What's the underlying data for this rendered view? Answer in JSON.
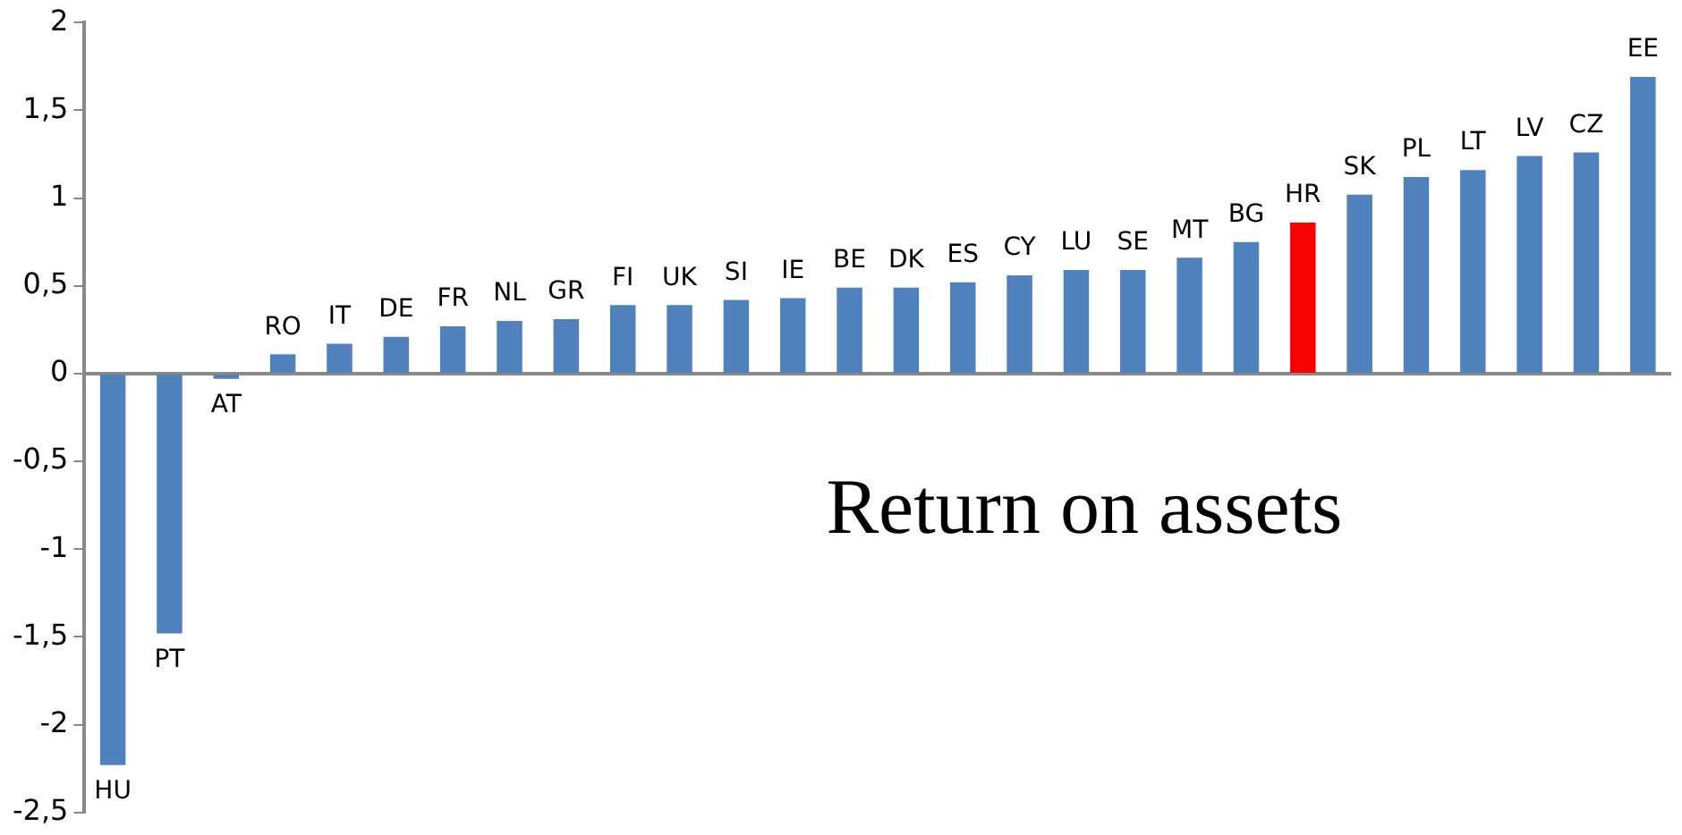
{
  "chart_data": {
    "type": "bar",
    "title": "Return on assets",
    "categories": [
      "HU",
      "PT",
      "AT",
      "RO",
      "IT",
      "DE",
      "FR",
      "NL",
      "GR",
      "FI",
      "UK",
      "SI",
      "IE",
      "BE",
      "DK",
      "ES",
      "CY",
      "LU",
      "SE",
      "MT",
      "BG",
      "HR",
      "SK",
      "PL",
      "LT",
      "LV",
      "CZ",
      "EE"
    ],
    "values": [
      -2.23,
      -1.48,
      -0.03,
      0.11,
      0.17,
      0.21,
      0.27,
      0.3,
      0.31,
      0.39,
      0.39,
      0.42,
      0.43,
      0.49,
      0.49,
      0.52,
      0.56,
      0.59,
      0.59,
      0.66,
      0.75,
      0.86,
      1.02,
      1.12,
      1.16,
      1.24,
      1.26,
      1.69
    ],
    "colors": [
      "#4f81bd",
      "#4f81bd",
      "#4f81bd",
      "#4f81bd",
      "#4f81bd",
      "#4f81bd",
      "#4f81bd",
      "#4f81bd",
      "#4f81bd",
      "#4f81bd",
      "#4f81bd",
      "#4f81bd",
      "#4f81bd",
      "#4f81bd",
      "#4f81bd",
      "#4f81bd",
      "#4f81bd",
      "#4f81bd",
      "#4f81bd",
      "#4f81bd",
      "#4f81bd",
      "#ff0000",
      "#4f81bd",
      "#4f81bd",
      "#4f81bd",
      "#4f81bd",
      "#4f81bd",
      "#4f81bd"
    ],
    "ylim": [
      -2.5,
      2
    ],
    "yticks": [
      {
        "value": -2.5,
        "label": "-2,5"
      },
      -2,
      {
        "value": -1.5,
        "label": "-1,5"
      },
      -1,
      {
        "value": -0.5,
        "label": "-0,5"
      },
      0,
      {
        "value": 0.5,
        "label": "0,5"
      },
      1,
      {
        "value": 1.5,
        "label": "1,5"
      },
      2
    ],
    "grid": false,
    "legend": false
  }
}
